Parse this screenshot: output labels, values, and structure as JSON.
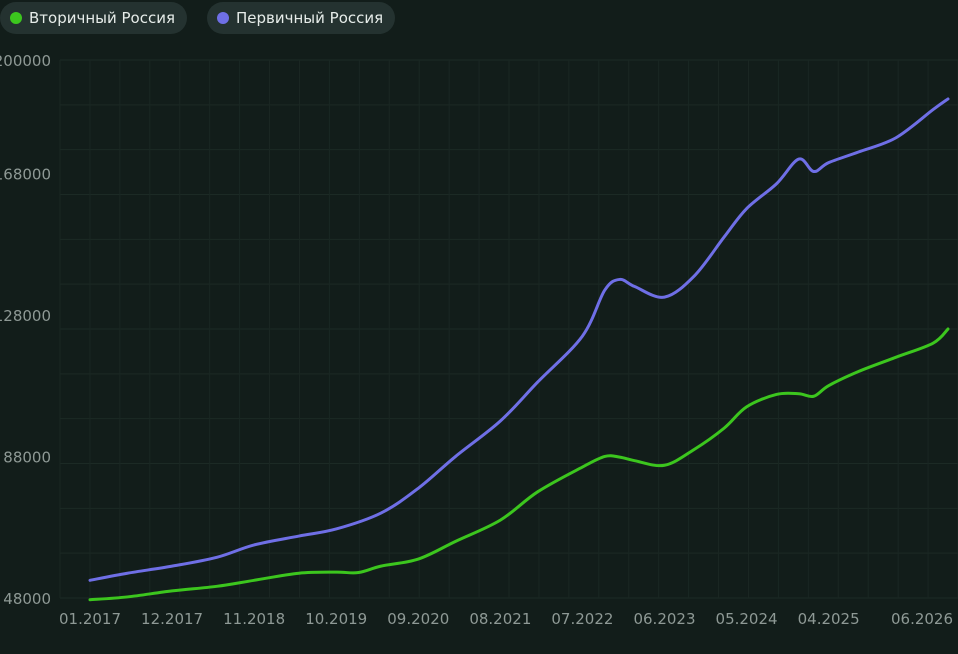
{
  "legend": [
    {
      "label": "Вторичный Россия",
      "color": "#3cc61e"
    },
    {
      "label": "Первичный Россия",
      "color": "#6f6fe6"
    }
  ],
  "chart_data": {
    "type": "line",
    "y_ticks": [
      48000,
      88000,
      128000,
      168000,
      200000
    ],
    "x_ticks": [
      "01.2017",
      "12.2017",
      "11.2018",
      "10.2019",
      "09.2020",
      "08.2021",
      "07.2022",
      "06.2023",
      "05.2024",
      "04.2025",
      "06.2026"
    ],
    "ylim": [
      48000,
      200000
    ],
    "grid": true,
    "legend_position": "top-left",
    "series": [
      {
        "name": "Вторичный Россия",
        "color": "#3cc61e",
        "points": [
          [
            "01.2017",
            47500
          ],
          [
            "06.2017",
            48300
          ],
          [
            "12.2017",
            50000
          ],
          [
            "06.2018",
            51300
          ],
          [
            "11.2018",
            53000
          ],
          [
            "05.2019",
            55000
          ],
          [
            "10.2019",
            55300
          ],
          [
            "01.2020",
            55200
          ],
          [
            "04.2020",
            57000
          ],
          [
            "09.2020",
            59000
          ],
          [
            "02.2021",
            64000
          ],
          [
            "08.2021",
            70000
          ],
          [
            "01.2022",
            78000
          ],
          [
            "07.2022",
            85000
          ],
          [
            "10.2022",
            88000
          ],
          [
            "12.2022",
            87800
          ],
          [
            "02.2023",
            86800
          ],
          [
            "06.2023",
            85500
          ],
          [
            "10.2023",
            90000
          ],
          [
            "02.2024",
            96000
          ],
          [
            "05.2024",
            102000
          ],
          [
            "09.2024",
            105500
          ],
          [
            "12.2024",
            105700
          ],
          [
            "02.2025",
            105000
          ],
          [
            "04.2025",
            108000
          ],
          [
            "08.2025",
            112000
          ],
          [
            "01.2026",
            116000
          ],
          [
            "06.2026",
            120000
          ],
          [
            "08.2026",
            124000
          ]
        ]
      },
      {
        "name": "Первичный Россия",
        "color": "#6f6fe6",
        "points": [
          [
            "01.2017",
            53000
          ],
          [
            "06.2017",
            55000
          ],
          [
            "12.2017",
            57000
          ],
          [
            "06.2018",
            59500
          ],
          [
            "11.2018",
            63000
          ],
          [
            "05.2019",
            65500
          ],
          [
            "10.2019",
            67500
          ],
          [
            "04.2020",
            72000
          ],
          [
            "09.2020",
            79000
          ],
          [
            "02.2021",
            88000
          ],
          [
            "08.2021",
            98000
          ],
          [
            "01.2022",
            109000
          ],
          [
            "07.2022",
            122000
          ],
          [
            "10.2022",
            135000
          ],
          [
            "12.2022",
            138000
          ],
          [
            "02.2023",
            136000
          ],
          [
            "06.2023",
            133000
          ],
          [
            "10.2023",
            139000
          ],
          [
            "02.2024",
            150000
          ],
          [
            "05.2024",
            158000
          ],
          [
            "09.2024",
            165000
          ],
          [
            "12.2024",
            172000
          ],
          [
            "02.2025",
            168500
          ],
          [
            "04.2025",
            171000
          ],
          [
            "08.2025",
            174000
          ],
          [
            "01.2026",
            178000
          ],
          [
            "06.2026",
            186000
          ],
          [
            "08.2026",
            189000
          ]
        ]
      }
    ]
  }
}
